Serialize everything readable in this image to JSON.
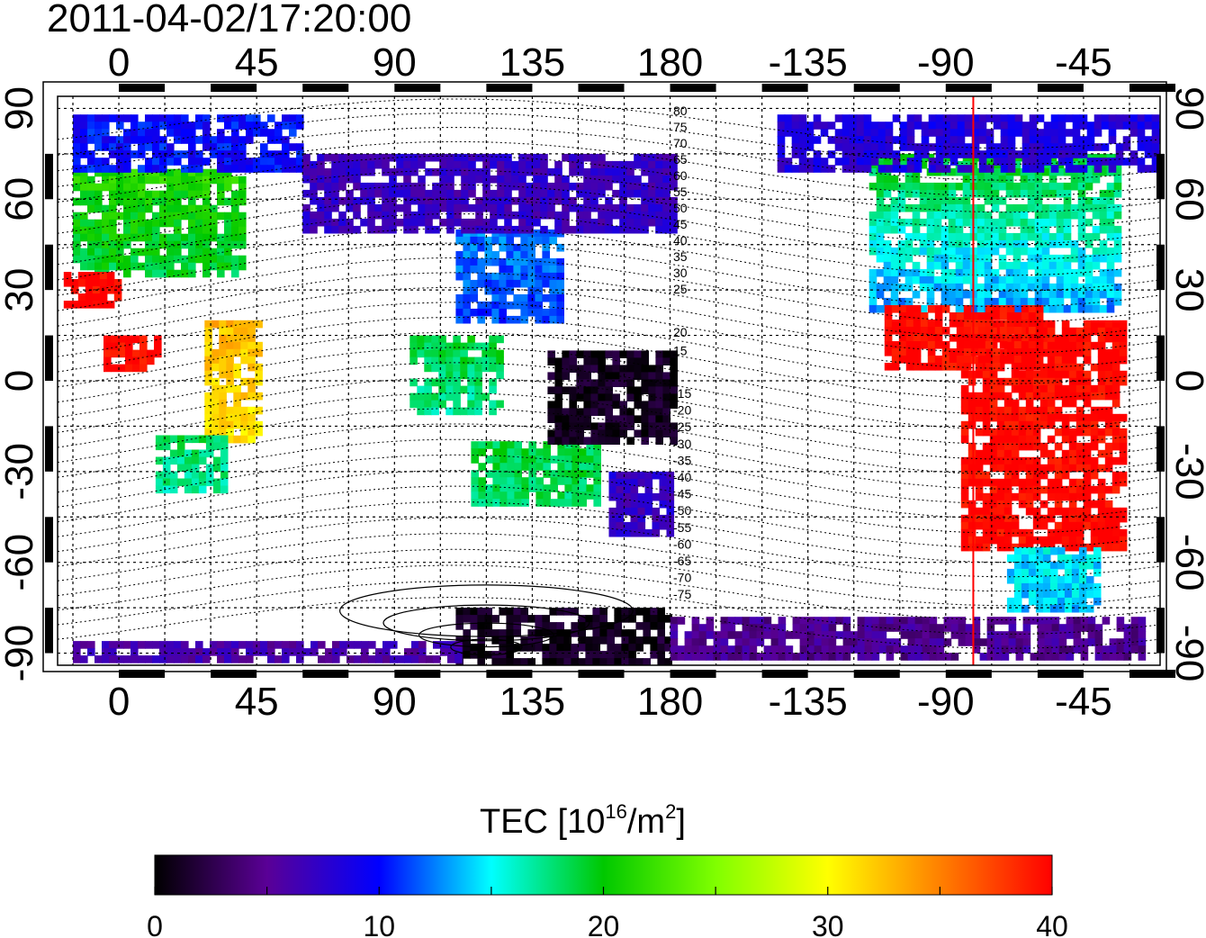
{
  "timestamp": "2011-04-02/17:20:00",
  "lon_ticks": [
    {
      "lon": 0,
      "label": "0"
    },
    {
      "lon": 45,
      "label": "45"
    },
    {
      "lon": 90,
      "label": "90"
    },
    {
      "lon": 135,
      "label": "135"
    },
    {
      "lon": 180,
      "label": "180"
    },
    {
      "lon": 225,
      "label": "-135"
    },
    {
      "lon": 270,
      "label": "-90"
    },
    {
      "lon": 315,
      "label": "-45"
    }
  ],
  "lat_ticks": [
    {
      "lat": 90,
      "label": "90"
    },
    {
      "lat": 60,
      "label": "60"
    },
    {
      "lat": 30,
      "label": "30"
    },
    {
      "lat": 0,
      "label": "0"
    },
    {
      "lat": -30,
      "label": "-30"
    },
    {
      "lat": -60,
      "label": "-60"
    },
    {
      "lat": -90,
      "label": "-90"
    }
  ],
  "lon_range": [
    -20,
    340
  ],
  "lat_range": [
    -94,
    94
  ],
  "contour_labels_north": [
    "80",
    "75",
    "70",
    "65",
    "60",
    "55",
    "50",
    "45",
    "40",
    "35",
    "30",
    "25",
    "20",
    "15"
  ],
  "contour_labels_south": [
    "-15",
    "-20",
    "-25",
    "-30",
    "-35",
    "-40",
    "-45",
    "-50",
    "-55",
    "-60",
    "-65",
    "-70",
    "-75"
  ],
  "red_meridian_lon": 279,
  "colorbar": {
    "title_prefix": "TEC  [10",
    "title_exp": "16",
    "title_mid": "/m",
    "title_exp2": "2",
    "title_suffix": "]",
    "min": 0,
    "max": 40,
    "tick_labels": [
      "0",
      "10",
      "20",
      "30",
      "40"
    ],
    "stops": [
      {
        "v": 0,
        "color": "#000000"
      },
      {
        "v": 5,
        "color": "#5a0096"
      },
      {
        "v": 10,
        "color": "#0000ff"
      },
      {
        "v": 15,
        "color": "#00ffff"
      },
      {
        "v": 20,
        "color": "#00c800"
      },
      {
        "v": 25,
        "color": "#80ff00"
      },
      {
        "v": 30,
        "color": "#ffff00"
      },
      {
        "v": 35,
        "color": "#ff8000"
      },
      {
        "v": 40,
        "color": "#ff0000"
      }
    ]
  },
  "tec_regions": [
    {
      "name": "north-america",
      "lon": [
        245,
        325
      ],
      "lat": [
        25,
        75
      ],
      "base": 13,
      "grad": 0.6
    },
    {
      "name": "arctic-america",
      "lon": [
        215,
        340
      ],
      "lat": [
        70,
        88
      ],
      "base": 8,
      "grad": 0.1
    },
    {
      "name": "south-america",
      "lon": [
        275,
        328
      ],
      "lat": [
        -55,
        20
      ],
      "base": 40,
      "grad": 0
    },
    {
      "name": "central-america",
      "lon": [
        250,
        300
      ],
      "lat": [
        5,
        25
      ],
      "base": 40,
      "grad": 0
    },
    {
      "name": "europe",
      "lon": [
        -15,
        40
      ],
      "lat": [
        35,
        70
      ],
      "base": 19,
      "grad": 0.3
    },
    {
      "name": "north-africa",
      "lon": [
        -18,
        0
      ],
      "lat": [
        26,
        36
      ],
      "base": 40,
      "grad": 0
    },
    {
      "name": "west-africa",
      "lon": [
        -5,
        12
      ],
      "lat": [
        5,
        15
      ],
      "base": 40,
      "grad": 0
    },
    {
      "name": "east-africa",
      "lon": [
        28,
        45
      ],
      "lat": [
        -20,
        20
      ],
      "base": 31,
      "grad": 0.2
    },
    {
      "name": "southern-africa",
      "lon": [
        12,
        35
      ],
      "lat": [
        -35,
        -18
      ],
      "base": 17,
      "grad": 0.3
    },
    {
      "name": "east-asia",
      "lon": [
        110,
        145
      ],
      "lat": [
        20,
        50
      ],
      "base": 11,
      "grad": 0.2
    },
    {
      "name": "southeast-asia",
      "lon": [
        95,
        125
      ],
      "lat": [
        -10,
        15
      ],
      "base": 17,
      "grad": 0.4
    },
    {
      "name": "australia",
      "lon": [
        115,
        155
      ],
      "lat": [
        -40,
        -20
      ],
      "base": 18,
      "grad": 0.2
    },
    {
      "name": "new-zealand",
      "lon": [
        160,
        180
      ],
      "lat": [
        -50,
        -30
      ],
      "base": 7,
      "grad": 0.1
    },
    {
      "name": "pacific-west",
      "lon": [
        140,
        180
      ],
      "lat": [
        -20,
        10
      ],
      "base": 1,
      "grad": 0
    },
    {
      "name": "antarctica",
      "lon": [
        110,
        180
      ],
      "lat": [
        -92,
        -75
      ],
      "base": 1,
      "grad": 0
    },
    {
      "name": "antarctica-east",
      "lon": [
        180,
        335
      ],
      "lat": [
        -92,
        -78
      ],
      "base": 5,
      "grad": 0
    },
    {
      "name": "antarctic-rim",
      "lon": [
        -15,
        110
      ],
      "lat": [
        -92,
        -86
      ],
      "base": 6,
      "grad": 0
    },
    {
      "name": "arctic-eurasia",
      "lon": [
        -15,
        60
      ],
      "lat": [
        70,
        88
      ],
      "base": 10,
      "grad": 0
    },
    {
      "name": "russia",
      "lon": [
        60,
        180
      ],
      "lat": [
        50,
        75
      ],
      "base": 7,
      "grad": 0
    },
    {
      "name": "south-atlantic",
      "lon": [
        290,
        320
      ],
      "lat": [
        -75,
        -55
      ],
      "base": 14,
      "grad": 0.2
    }
  ]
}
